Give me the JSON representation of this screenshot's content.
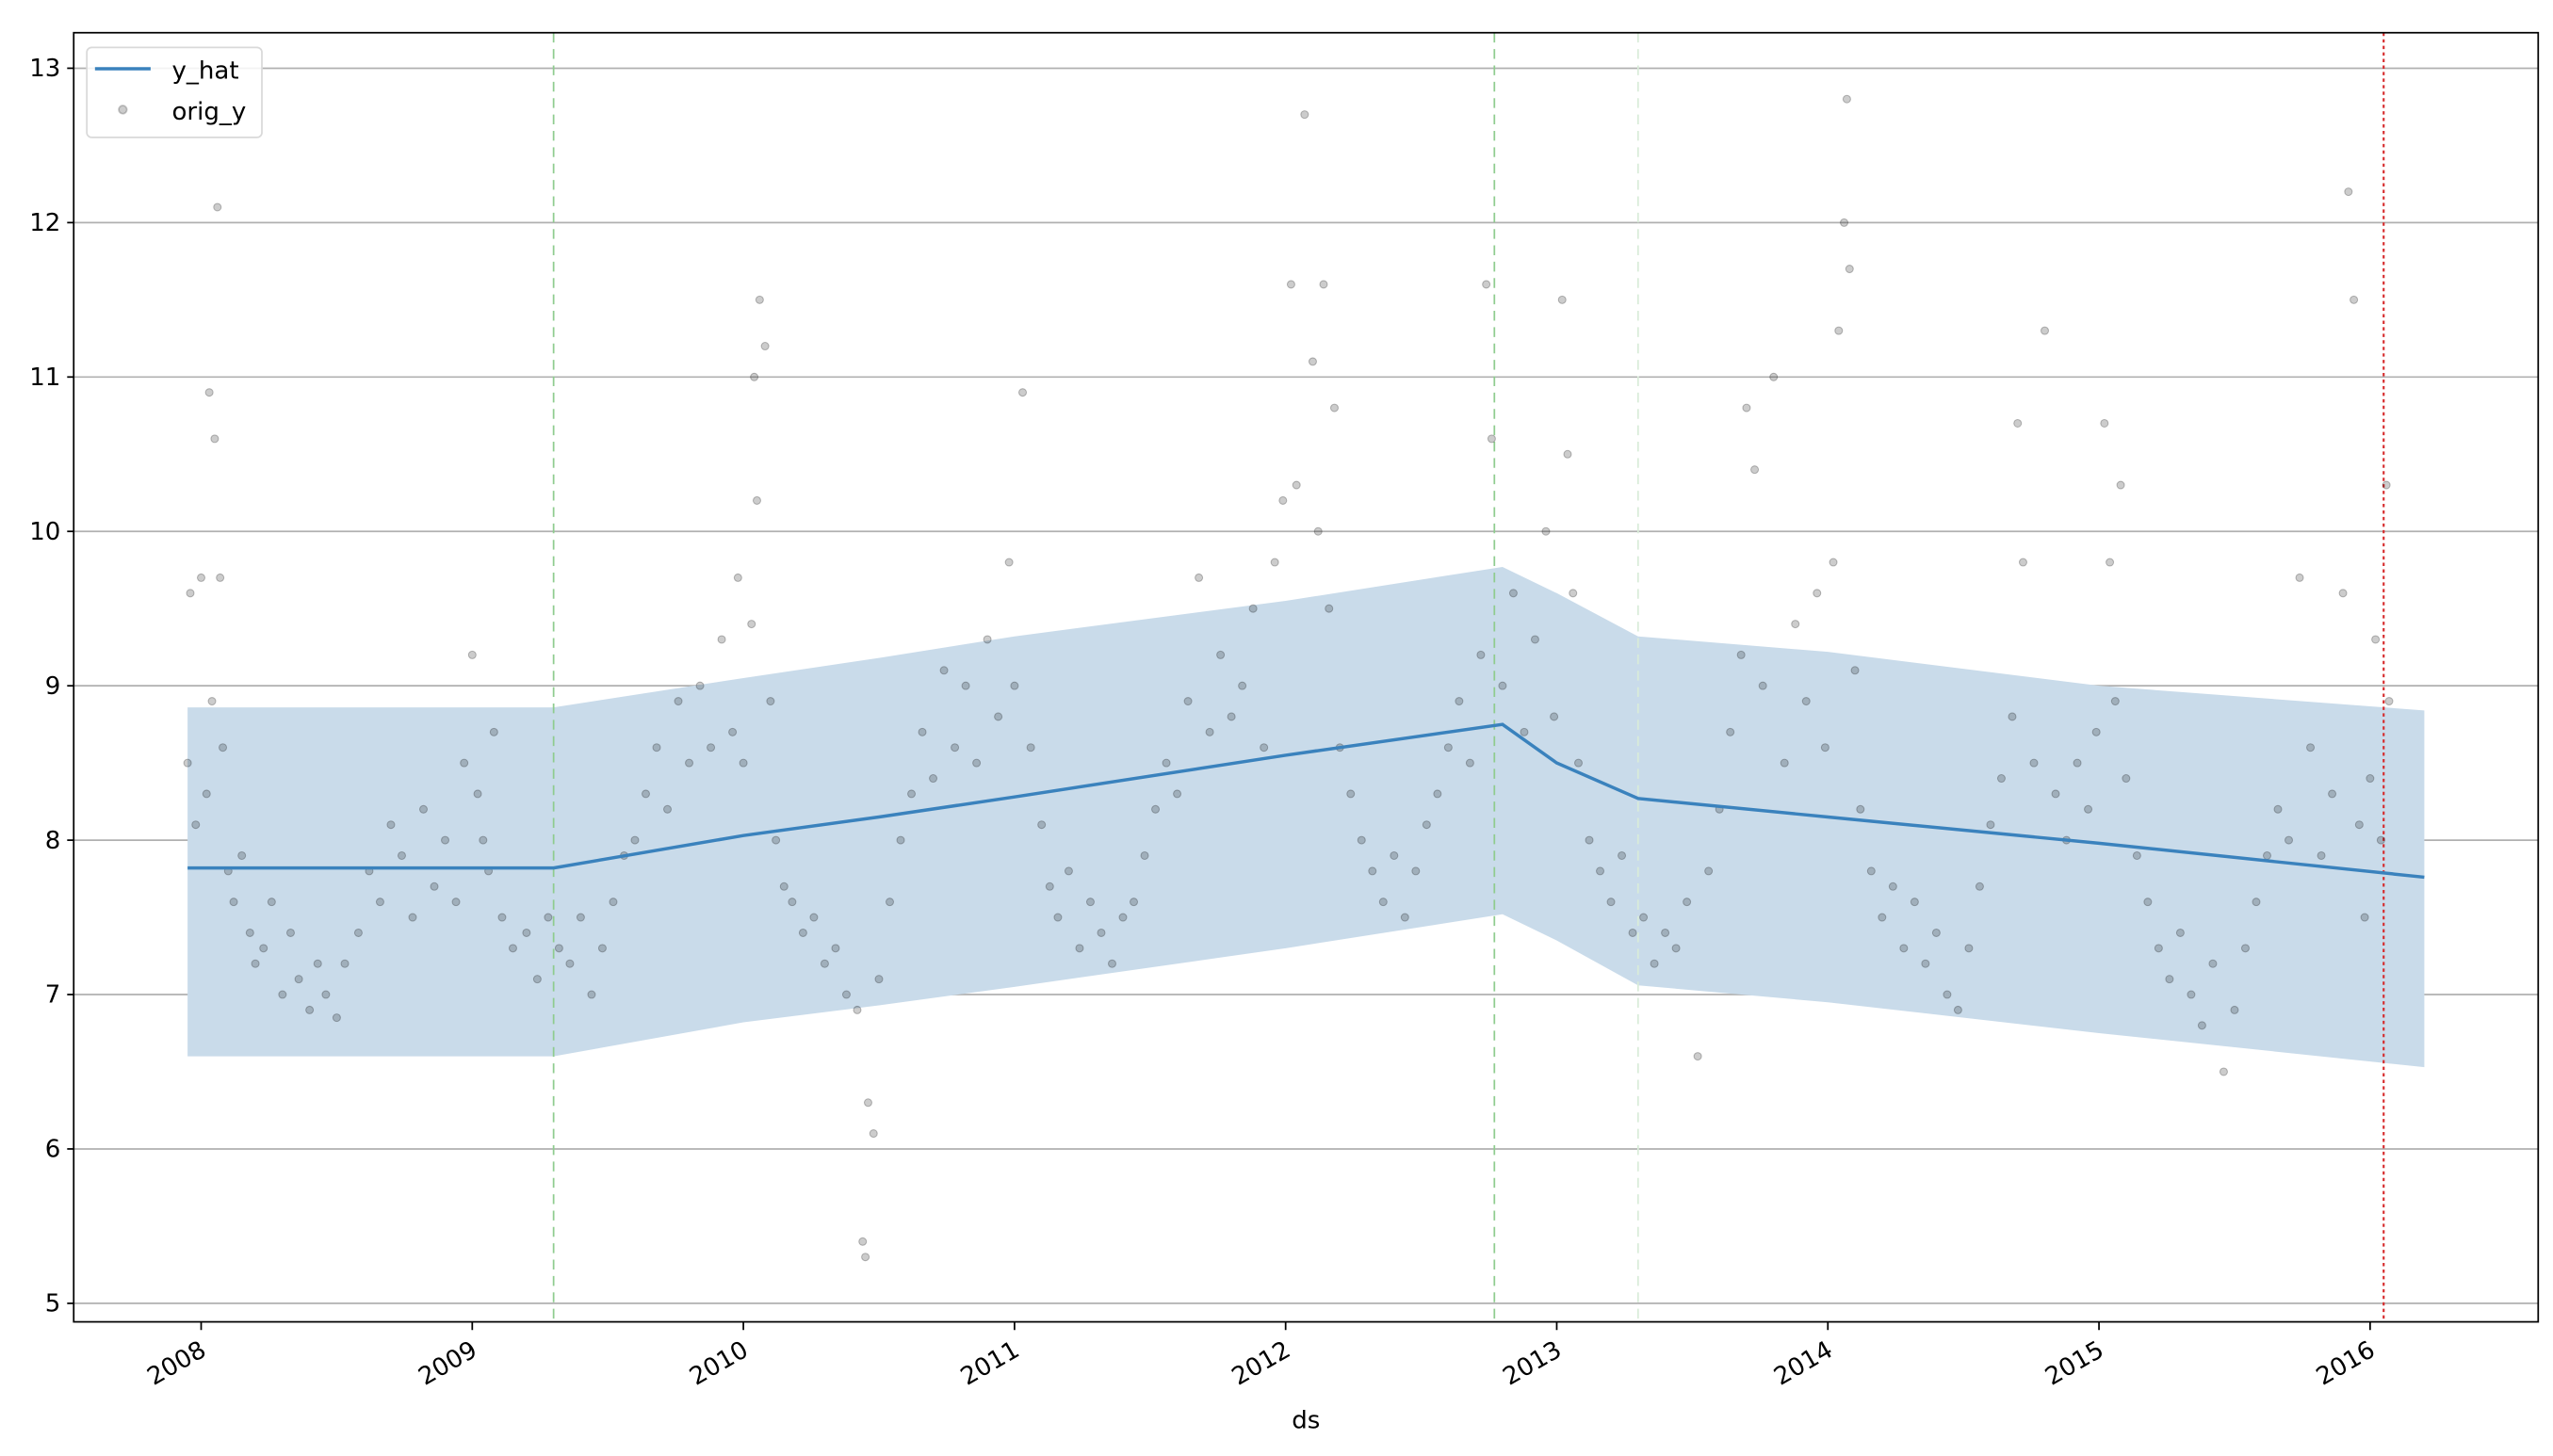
{
  "chart_data": {
    "type": "line",
    "title": "",
    "xlabel": "ds",
    "ylabel": "",
    "xlim": [
      2007.53,
      2016.62
    ],
    "ylim": [
      4.88,
      13.23
    ],
    "grid": "horizontal",
    "legend": {
      "placement": "top-left",
      "entries": [
        "y_hat",
        "orig_y"
      ]
    },
    "x_ticks": [
      2008,
      2009,
      2010,
      2011,
      2012,
      2013,
      2014,
      2015,
      2016
    ],
    "x_tick_labels": [
      "2008",
      "2009",
      "2010",
      "2011",
      "2012",
      "2013",
      "2014",
      "2015",
      "2016"
    ],
    "y_ticks": [
      5,
      6,
      7,
      8,
      9,
      10,
      11,
      12,
      13
    ],
    "y_tick_labels": [
      "5",
      "6",
      "7",
      "8",
      "9",
      "10",
      "11",
      "12",
      "13"
    ],
    "colors": {
      "y_hat": "#3a82bd",
      "band": "#c9dbea",
      "orig_y": "#000000",
      "changepoint": "#8fcc8f",
      "changepoint_faint": "#d9ecd9",
      "cutoff": "#d62728",
      "grid": "#b0b0b0"
    },
    "series": [
      {
        "name": "y_hat",
        "kind": "line",
        "x": [
          2007.95,
          2009.3,
          2010.0,
          2010.5,
          2011.0,
          2012.0,
          2012.8,
          2013.0,
          2013.3,
          2014.0,
          2015.0,
          2016.2
        ],
        "y": [
          7.82,
          7.82,
          8.03,
          8.15,
          8.28,
          8.55,
          8.75,
          8.5,
          8.27,
          8.15,
          7.98,
          7.76
        ]
      },
      {
        "name": "uncertainty",
        "kind": "band",
        "x": [
          2007.95,
          2009.3,
          2010.0,
          2010.5,
          2011.0,
          2012.0,
          2012.8,
          2013.0,
          2013.3,
          2014.0,
          2015.0,
          2016.2
        ],
        "upper": [
          8.86,
          8.86,
          9.05,
          9.18,
          9.32,
          9.55,
          9.77,
          9.6,
          9.32,
          9.22,
          9.0,
          8.84
        ],
        "lower": [
          6.6,
          6.6,
          6.82,
          6.93,
          7.05,
          7.3,
          7.52,
          7.35,
          7.06,
          6.95,
          6.75,
          6.53
        ]
      },
      {
        "name": "orig_y",
        "kind": "scatter",
        "points": [
          [
            2007.95,
            8.5
          ],
          [
            2007.96,
            9.6
          ],
          [
            2007.98,
            8.1
          ],
          [
            2008.0,
            9.7
          ],
          [
            2008.02,
            8.3
          ],
          [
            2008.03,
            10.9
          ],
          [
            2008.04,
            8.9
          ],
          [
            2008.06,
            12.1
          ],
          [
            2008.07,
            9.7
          ],
          [
            2008.08,
            8.6
          ],
          [
            2008.05,
            10.6
          ],
          [
            2008.1,
            7.8
          ],
          [
            2008.12,
            7.6
          ],
          [
            2008.15,
            7.9
          ],
          [
            2008.18,
            7.4
          ],
          [
            2008.2,
            7.2
          ],
          [
            2008.23,
            7.3
          ],
          [
            2008.26,
            7.6
          ],
          [
            2008.3,
            7.0
          ],
          [
            2008.33,
            7.4
          ],
          [
            2008.36,
            7.1
          ],
          [
            2008.4,
            6.9
          ],
          [
            2008.43,
            7.2
          ],
          [
            2008.46,
            7.0
          ],
          [
            2008.5,
            6.85
          ],
          [
            2008.53,
            7.2
          ],
          [
            2008.58,
            7.4
          ],
          [
            2008.62,
            7.8
          ],
          [
            2008.66,
            7.6
          ],
          [
            2008.7,
            8.1
          ],
          [
            2008.74,
            7.9
          ],
          [
            2008.78,
            7.5
          ],
          [
            2008.82,
            8.2
          ],
          [
            2008.86,
            7.7
          ],
          [
            2008.9,
            8.0
          ],
          [
            2008.94,
            7.6
          ],
          [
            2008.97,
            8.5
          ],
          [
            2009.0,
            9.2
          ],
          [
            2009.02,
            8.3
          ],
          [
            2009.04,
            8.0
          ],
          [
            2009.06,
            7.8
          ],
          [
            2009.08,
            8.7
          ],
          [
            2009.11,
            7.5
          ],
          [
            2009.15,
            7.3
          ],
          [
            2009.2,
            7.4
          ],
          [
            2009.24,
            7.1
          ],
          [
            2009.28,
            7.5
          ],
          [
            2009.32,
            7.3
          ],
          [
            2009.36,
            7.2
          ],
          [
            2009.4,
            7.5
          ],
          [
            2009.44,
            7.0
          ],
          [
            2009.48,
            7.3
          ],
          [
            2009.52,
            7.6
          ],
          [
            2009.56,
            7.9
          ],
          [
            2009.6,
            8.0
          ],
          [
            2009.64,
            8.3
          ],
          [
            2009.68,
            8.6
          ],
          [
            2009.72,
            8.2
          ],
          [
            2009.76,
            8.9
          ],
          [
            2009.8,
            8.5
          ],
          [
            2009.84,
            9.0
          ],
          [
            2009.88,
            8.6
          ],
          [
            2009.92,
            9.3
          ],
          [
            2009.96,
            8.7
          ],
          [
            2009.98,
            9.7
          ],
          [
            2010.0,
            8.5
          ],
          [
            2010.03,
            9.4
          ],
          [
            2010.05,
            10.2
          ],
          [
            2010.06,
            11.5
          ],
          [
            2010.08,
            11.2
          ],
          [
            2010.04,
            11.0
          ],
          [
            2010.1,
            8.9
          ],
          [
            2010.12,
            8.0
          ],
          [
            2010.15,
            7.7
          ],
          [
            2010.18,
            7.6
          ],
          [
            2010.22,
            7.4
          ],
          [
            2010.26,
            7.5
          ],
          [
            2010.3,
            7.2
          ],
          [
            2010.34,
            7.3
          ],
          [
            2010.38,
            7.0
          ],
          [
            2010.42,
            6.9
          ],
          [
            2010.44,
            5.4
          ],
          [
            2010.45,
            5.3
          ],
          [
            2010.46,
            6.3
          ],
          [
            2010.48,
            6.1
          ],
          [
            2010.5,
            7.1
          ],
          [
            2010.54,
            7.6
          ],
          [
            2010.58,
            8.0
          ],
          [
            2010.62,
            8.3
          ],
          [
            2010.66,
            8.7
          ],
          [
            2010.7,
            8.4
          ],
          [
            2010.74,
            9.1
          ],
          [
            2010.78,
            8.6
          ],
          [
            2010.82,
            9.0
          ],
          [
            2010.86,
            8.5
          ],
          [
            2010.9,
            9.3
          ],
          [
            2010.94,
            8.8
          ],
          [
            2010.98,
            9.8
          ],
          [
            2011.0,
            9.0
          ],
          [
            2011.03,
            10.9
          ],
          [
            2011.06,
            8.6
          ],
          [
            2011.1,
            8.1
          ],
          [
            2011.13,
            7.7
          ],
          [
            2011.16,
            7.5
          ],
          [
            2011.2,
            7.8
          ],
          [
            2011.24,
            7.3
          ],
          [
            2011.28,
            7.6
          ],
          [
            2011.32,
            7.4
          ],
          [
            2011.36,
            7.2
          ],
          [
            2011.4,
            7.5
          ],
          [
            2011.44,
            7.6
          ],
          [
            2011.48,
            7.9
          ],
          [
            2011.52,
            8.2
          ],
          [
            2011.56,
            8.5
          ],
          [
            2011.6,
            8.3
          ],
          [
            2011.64,
            8.9
          ],
          [
            2011.68,
            9.7
          ],
          [
            2011.72,
            8.7
          ],
          [
            2011.76,
            9.2
          ],
          [
            2011.8,
            8.8
          ],
          [
            2011.84,
            9.0
          ],
          [
            2011.88,
            9.5
          ],
          [
            2011.92,
            8.6
          ],
          [
            2011.96,
            9.8
          ],
          [
            2011.99,
            10.2
          ],
          [
            2012.02,
            11.6
          ],
          [
            2012.04,
            10.3
          ],
          [
            2012.07,
            12.7
          ],
          [
            2012.1,
            11.1
          ],
          [
            2012.12,
            10.0
          ],
          [
            2012.14,
            11.6
          ],
          [
            2012.16,
            9.5
          ],
          [
            2012.18,
            10.8
          ],
          [
            2012.2,
            8.6
          ],
          [
            2012.24,
            8.3
          ],
          [
            2012.28,
            8.0
          ],
          [
            2012.32,
            7.8
          ],
          [
            2012.36,
            7.6
          ],
          [
            2012.4,
            7.9
          ],
          [
            2012.44,
            7.5
          ],
          [
            2012.48,
            7.8
          ],
          [
            2012.52,
            8.1
          ],
          [
            2012.56,
            8.3
          ],
          [
            2012.6,
            8.6
          ],
          [
            2012.64,
            8.9
          ],
          [
            2012.68,
            8.5
          ],
          [
            2012.72,
            9.2
          ],
          [
            2012.74,
            11.6
          ],
          [
            2012.76,
            10.6
          ],
          [
            2012.8,
            9.0
          ],
          [
            2012.84,
            9.6
          ],
          [
            2012.88,
            8.7
          ],
          [
            2012.92,
            9.3
          ],
          [
            2012.96,
            10.0
          ],
          [
            2012.99,
            8.8
          ],
          [
            2013.02,
            11.5
          ],
          [
            2013.04,
            10.5
          ],
          [
            2013.06,
            9.6
          ],
          [
            2013.08,
            8.5
          ],
          [
            2013.12,
            8.0
          ],
          [
            2013.16,
            7.8
          ],
          [
            2013.2,
            7.6
          ],
          [
            2013.24,
            7.9
          ],
          [
            2013.28,
            7.4
          ],
          [
            2013.32,
            7.5
          ],
          [
            2013.36,
            7.2
          ],
          [
            2013.4,
            7.4
          ],
          [
            2013.44,
            7.3
          ],
          [
            2013.48,
            7.6
          ],
          [
            2013.52,
            6.6
          ],
          [
            2013.56,
            7.8
          ],
          [
            2013.6,
            8.2
          ],
          [
            2013.64,
            8.7
          ],
          [
            2013.68,
            9.2
          ],
          [
            2013.7,
            10.8
          ],
          [
            2013.73,
            10.4
          ],
          [
            2013.76,
            9.0
          ],
          [
            2013.8,
            11.0
          ],
          [
            2013.84,
            8.5
          ],
          [
            2013.88,
            9.4
          ],
          [
            2013.92,
            8.9
          ],
          [
            2013.96,
            9.6
          ],
          [
            2013.99,
            8.6
          ],
          [
            2014.02,
            9.8
          ],
          [
            2014.04,
            11.3
          ],
          [
            2014.06,
            12.0
          ],
          [
            2014.07,
            12.8
          ],
          [
            2014.08,
            11.7
          ],
          [
            2014.1,
            9.1
          ],
          [
            2014.12,
            8.2
          ],
          [
            2014.16,
            7.8
          ],
          [
            2014.2,
            7.5
          ],
          [
            2014.24,
            7.7
          ],
          [
            2014.28,
            7.3
          ],
          [
            2014.32,
            7.6
          ],
          [
            2014.36,
            7.2
          ],
          [
            2014.4,
            7.4
          ],
          [
            2014.44,
            7.0
          ],
          [
            2014.48,
            6.9
          ],
          [
            2014.52,
            7.3
          ],
          [
            2014.56,
            7.7
          ],
          [
            2014.6,
            8.1
          ],
          [
            2014.64,
            8.4
          ],
          [
            2014.68,
            8.8
          ],
          [
            2014.7,
            10.7
          ],
          [
            2014.72,
            9.8
          ],
          [
            2014.76,
            8.5
          ],
          [
            2014.8,
            11.3
          ],
          [
            2014.84,
            8.3
          ],
          [
            2014.88,
            8.0
          ],
          [
            2014.92,
            8.5
          ],
          [
            2014.96,
            8.2
          ],
          [
            2014.99,
            8.7
          ],
          [
            2015.02,
            10.7
          ],
          [
            2015.04,
            9.8
          ],
          [
            2015.06,
            8.9
          ],
          [
            2015.08,
            10.3
          ],
          [
            2015.1,
            8.4
          ],
          [
            2015.14,
            7.9
          ],
          [
            2015.18,
            7.6
          ],
          [
            2015.22,
            7.3
          ],
          [
            2015.26,
            7.1
          ],
          [
            2015.3,
            7.4
          ],
          [
            2015.34,
            7.0
          ],
          [
            2015.38,
            6.8
          ],
          [
            2015.42,
            7.2
          ],
          [
            2015.46,
            6.5
          ],
          [
            2015.5,
            6.9
          ],
          [
            2015.54,
            7.3
          ],
          [
            2015.58,
            7.6
          ],
          [
            2015.62,
            7.9
          ],
          [
            2015.66,
            8.2
          ],
          [
            2015.7,
            8.0
          ],
          [
            2015.74,
            9.7
          ],
          [
            2015.78,
            8.6
          ],
          [
            2015.82,
            7.9
          ],
          [
            2015.86,
            8.3
          ],
          [
            2015.9,
            9.6
          ],
          [
            2015.92,
            12.2
          ],
          [
            2015.94,
            11.5
          ],
          [
            2015.96,
            8.1
          ],
          [
            2015.98,
            7.5
          ],
          [
            2016.0,
            8.4
          ],
          [
            2016.02,
            9.3
          ],
          [
            2016.04,
            8.0
          ],
          [
            2016.06,
            10.3
          ],
          [
            2016.07,
            8.9
          ]
        ]
      }
    ],
    "changepoints": [
      2009.3,
      2012.77
    ],
    "faint_changepoints": [
      2013.3
    ],
    "cutoff": 2016.05
  }
}
